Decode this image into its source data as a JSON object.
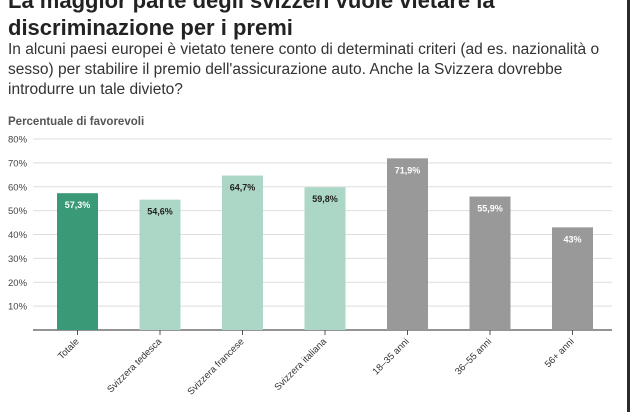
{
  "header": {
    "title": "La maggior parte degli svizzeri vuole vietare la discriminazione per i premi",
    "subtitle": "In alcuni paesi europei è vietato tenere conto di determinati criteri (ad es. nazionalità o sesso) per stabilire il premio dell'assicurazione auto. Anche la Svizzera dovrebbe introdurre un tale divieto?"
  },
  "chart_data": {
    "type": "bar",
    "ylabel": "Percentuale di favorevoli",
    "ylim": [
      0,
      80
    ],
    "yticks": [
      "10%",
      "20%",
      "30%",
      "40%",
      "50%",
      "60%",
      "70%",
      "80%"
    ],
    "grid": true,
    "categories": [
      "Totale",
      "Svizzera tedesca",
      "Svizzera francese",
      "Svizzera italiana",
      "18–35 anni",
      "36–55 anni",
      "56+ anni"
    ],
    "values": [
      57.3,
      54.6,
      64.7,
      59.8,
      71.9,
      55.9,
      43
    ],
    "value_labels": [
      "57,3%",
      "54,6%",
      "64,7%",
      "59,8%",
      "71,9%",
      "55,9%",
      "43%"
    ],
    "colors": [
      "#3a9a78",
      "#acd7c6",
      "#acd7c6",
      "#acd7c6",
      "#999999",
      "#999999",
      "#999999"
    ],
    "label_colors": [
      "#ffffff",
      "#222222",
      "#222222",
      "#222222",
      "#ffffff",
      "#ffffff",
      "#ffffff"
    ]
  }
}
